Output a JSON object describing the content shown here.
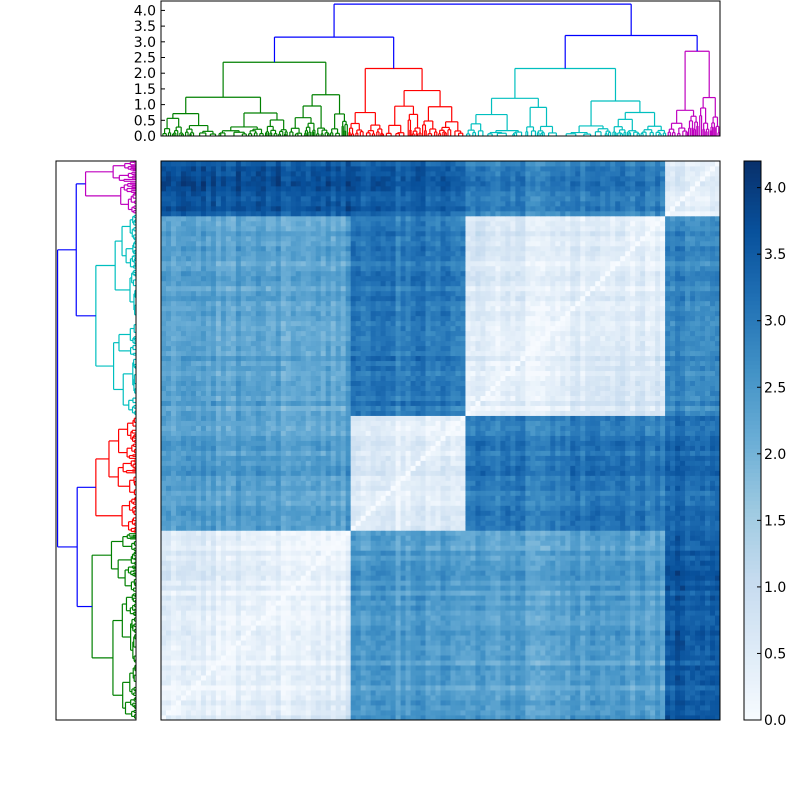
{
  "chart_data": {
    "type": "heatmap",
    "title": "",
    "description_free": true,
    "colormap": "Blues",
    "color_range": [
      0.0,
      4.2
    ],
    "colorbar": {
      "ticks": [
        0.0,
        0.5,
        1.0,
        1.5,
        2.0,
        2.5,
        3.0,
        3.5,
        4.0
      ],
      "tick_labels": [
        "0.0",
        "0.5",
        "1.0",
        "1.5",
        "2.0",
        "2.5",
        "3.0",
        "3.5",
        "4.0"
      ]
    },
    "top_dendrogram": {
      "ylim": [
        0.0,
        4.3
      ],
      "ticks": [
        0.0,
        0.5,
        1.0,
        1.5,
        2.0,
        2.5,
        3.0,
        3.5,
        4.0
      ],
      "tick_labels": [
        "0.0",
        "0.5",
        "1.0",
        "1.5",
        "2.0",
        "2.5",
        "3.0",
        "3.5",
        "4.0"
      ],
      "root_height": 4.2,
      "link_color": "#0000ff"
    },
    "left_dendrogram": {
      "root_height": 4.2,
      "link_color": "#0000ff"
    },
    "clusters": [
      {
        "name": "green",
        "color": "#008000",
        "size": 0.335,
        "merge_height": 2.35
      },
      {
        "name": "red",
        "color": "#ff0000",
        "size": 0.21,
        "merge_height": 2.15
      },
      {
        "name": "cyan",
        "color": "#00bfbf",
        "size": 0.36,
        "merge_height": 2.15
      },
      {
        "name": "magenta",
        "color": "#bf00bf",
        "size": 0.095,
        "merge_height": 2.7
      }
    ],
    "top_level_merges": [
      {
        "left": "green",
        "right": "red",
        "height": 3.15
      },
      {
        "left": "cyan",
        "right": "magenta",
        "height": 3.2
      },
      {
        "left": "green+red",
        "right": "cyan+magenta",
        "height": 4.2
      }
    ],
    "block_mean_distance": [
      [
        0.6,
        2.4,
        2.3,
        3.6
      ],
      [
        2.4,
        0.8,
        3.0,
        3.4
      ],
      [
        2.3,
        3.0,
        0.7,
        2.9
      ],
      [
        3.6,
        3.4,
        2.9,
        0.9
      ]
    ]
  }
}
